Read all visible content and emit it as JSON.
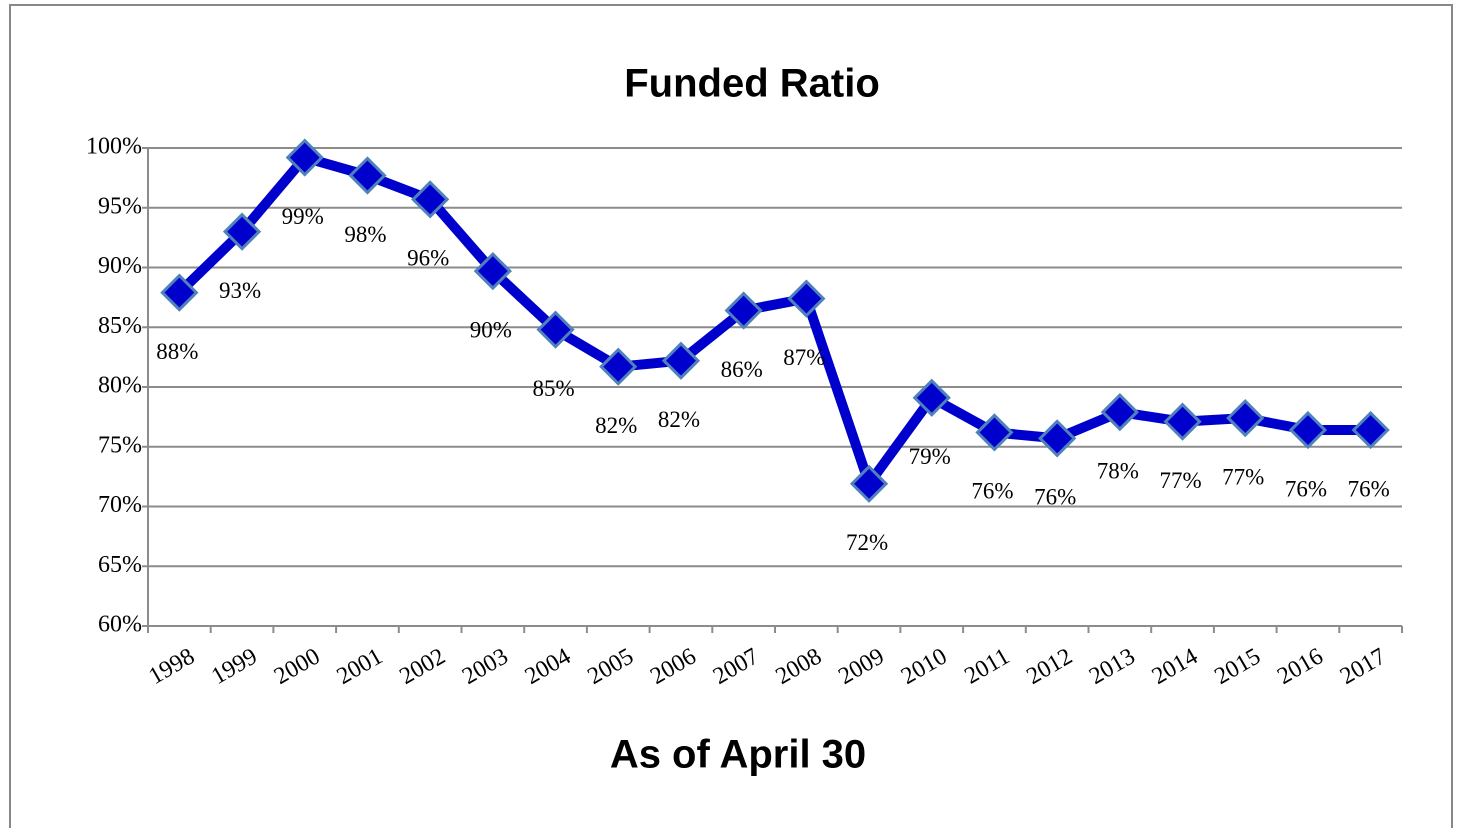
{
  "chart_data": {
    "type": "line",
    "title": "Funded Ratio",
    "x_label": "As of April 30",
    "categories": [
      "1998",
      "1999",
      "2000",
      "2001",
      "2002",
      "2003",
      "2004",
      "2005",
      "2006",
      "2007",
      "2008",
      "2009",
      "2010",
      "2011",
      "2012",
      "2013",
      "2014",
      "2015",
      "2016",
      "2017"
    ],
    "series": [
      {
        "name": "Funded Ratio",
        "color": "#0000cc",
        "values": [
          87.9,
          93.0,
          99.2,
          97.7,
          95.7,
          89.7,
          84.8,
          81.7,
          82.2,
          86.4,
          87.4,
          71.9,
          79.1,
          76.2,
          75.7,
          77.9,
          77.1,
          77.4,
          76.4,
          76.4
        ],
        "value_labels": [
          "88%",
          "93%",
          "99%",
          "98%",
          "96%",
          "90%",
          "85%",
          "82%",
          "82%",
          "86%",
          "87%",
          "72%",
          "79%",
          "76%",
          "76%",
          "78%",
          "77%",
          "77%",
          "76%",
          "76%"
        ]
      }
    ],
    "ylim": [
      60,
      100
    ],
    "yticks": [
      {
        "value": 60,
        "label": "60%"
      },
      {
        "value": 65,
        "label": "65%"
      },
      {
        "value": 70,
        "label": "70%"
      },
      {
        "value": 75,
        "label": "75%"
      },
      {
        "value": 80,
        "label": "80%"
      },
      {
        "value": 85,
        "label": "85%"
      },
      {
        "value": 90,
        "label": "90%"
      },
      {
        "value": 95,
        "label": "95%"
      },
      {
        "value": 100,
        "label": "100%"
      }
    ],
    "grid": true
  }
}
